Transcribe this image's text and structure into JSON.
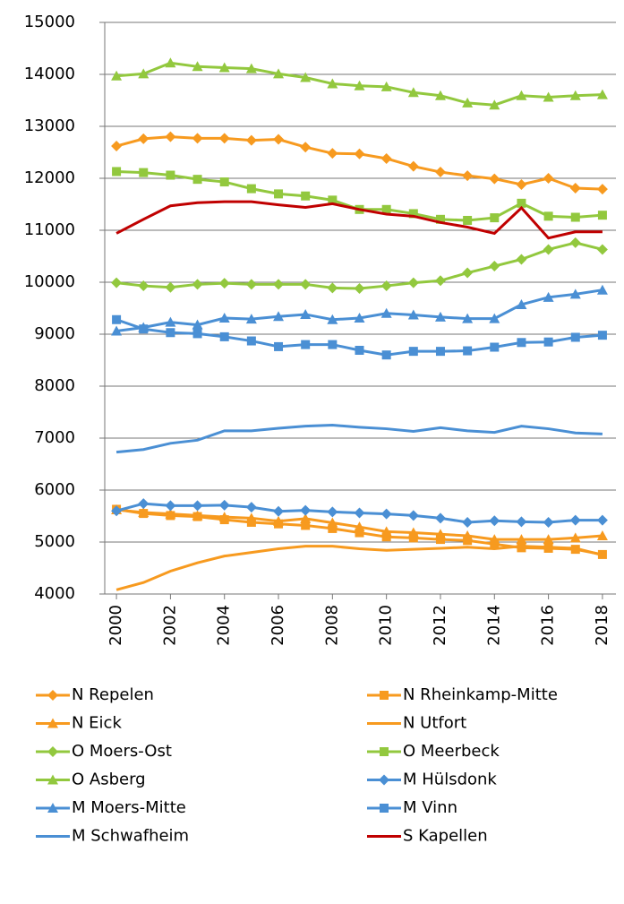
{
  "chart_data": {
    "type": "line",
    "x": [
      2000,
      2001,
      2002,
      2003,
      2004,
      2005,
      2006,
      2007,
      2008,
      2009,
      2010,
      2011,
      2012,
      2013,
      2014,
      2015,
      2016,
      2017,
      2018
    ],
    "xlim": [
      1999.5,
      2018.5
    ],
    "xticks": [
      2000,
      2002,
      2004,
      2006,
      2008,
      2010,
      2012,
      2014,
      2016,
      2018
    ],
    "ylim": [
      4000,
      15000
    ],
    "yticks": [
      4000,
      5000,
      6000,
      7000,
      8000,
      9000,
      10000,
      11000,
      12000,
      13000,
      14000,
      15000
    ],
    "grid": true,
    "series": [
      {
        "name": "N Repelen",
        "color": "#f79a1f",
        "marker": "diamond",
        "values": [
          12620,
          12760,
          12800,
          12770,
          12770,
          12730,
          12750,
          12600,
          12480,
          12470,
          12380,
          12230,
          12120,
          12050,
          11990,
          11880,
          12000,
          11810,
          11790
        ]
      },
      {
        "name": "N Rheinkamp-Mitte",
        "color": "#f79a1f",
        "marker": "square",
        "values": [
          5630,
          5550,
          5510,
          5490,
          5430,
          5380,
          5350,
          5320,
          5260,
          5180,
          5100,
          5080,
          5050,
          5030,
          4960,
          4890,
          4880,
          4860,
          4760
        ]
      },
      {
        "name": "N Eick",
        "color": "#f79a1f",
        "marker": "triangle",
        "values": [
          5620,
          5570,
          5540,
          5510,
          5480,
          5460,
          5400,
          5450,
          5370,
          5290,
          5200,
          5180,
          5150,
          5120,
          5050,
          5050,
          5050,
          5080,
          5120
        ]
      },
      {
        "name": "N Utfort",
        "color": "#f79a1f",
        "marker": "none",
        "values": [
          4080,
          4220,
          4440,
          4600,
          4730,
          4800,
          4870,
          4920,
          4920,
          4870,
          4840,
          4860,
          4880,
          4900,
          4870,
          4920,
          4900,
          4880,
          4750
        ]
      },
      {
        "name": "O Moers-Ost",
        "color": "#92c83e",
        "marker": "diamond",
        "values": [
          9990,
          9930,
          9900,
          9960,
          9980,
          9960,
          9960,
          9960,
          9890,
          9880,
          9930,
          9990,
          10030,
          10180,
          10310,
          10440,
          10630,
          10760,
          10630
        ]
      },
      {
        "name": "O Meerbeck",
        "color": "#92c83e",
        "marker": "square",
        "values": [
          12130,
          12110,
          12060,
          11980,
          11930,
          11800,
          11700,
          11660,
          11580,
          11400,
          11400,
          11320,
          11210,
          11190,
          11240,
          11520,
          11270,
          11250,
          11290
        ]
      },
      {
        "name": "O Asberg",
        "color": "#92c83e",
        "marker": "triangle",
        "values": [
          13970,
          14010,
          14220,
          14150,
          14130,
          14110,
          14010,
          13940,
          13820,
          13780,
          13760,
          13650,
          13590,
          13450,
          13410,
          13590,
          13560,
          13590,
          13610
        ]
      },
      {
        "name": "M Hülsdonk",
        "color": "#4a8fd4",
        "marker": "diamond",
        "values": [
          5600,
          5740,
          5700,
          5700,
          5710,
          5670,
          5590,
          5610,
          5580,
          5560,
          5540,
          5510,
          5460,
          5380,
          5410,
          5390,
          5380,
          5420,
          5420
        ]
      },
      {
        "name": "M Moers-Mitte",
        "color": "#4a8fd4",
        "marker": "triangle",
        "values": [
          9060,
          9130,
          9230,
          9180,
          9310,
          9290,
          9340,
          9380,
          9280,
          9310,
          9400,
          9370,
          9330,
          9300,
          9300,
          9570,
          9710,
          9770,
          9850
        ]
      },
      {
        "name": "M Vinn",
        "color": "#4a8fd4",
        "marker": "square",
        "values": [
          9280,
          9100,
          9030,
          9010,
          8950,
          8870,
          8760,
          8800,
          8800,
          8690,
          8600,
          8670,
          8670,
          8680,
          8750,
          8840,
          8850,
          8940,
          8980
        ]
      },
      {
        "name": "M Schwafheim",
        "color": "#4a8fd4",
        "marker": "none",
        "values": [
          6730,
          6780,
          6900,
          6960,
          7140,
          7140,
          7190,
          7230,
          7250,
          7210,
          7180,
          7130,
          7200,
          7140,
          7110,
          7230,
          7180,
          7100,
          7080
        ]
      },
      {
        "name": "S Kapellen",
        "color": "#c00000",
        "marker": "none",
        "values": [
          10940,
          11210,
          11470,
          11530,
          11550,
          11550,
          11490,
          11440,
          11510,
          11400,
          11310,
          11270,
          11150,
          11060,
          10940,
          11430,
          10850,
          10970,
          10970
        ]
      }
    ]
  }
}
